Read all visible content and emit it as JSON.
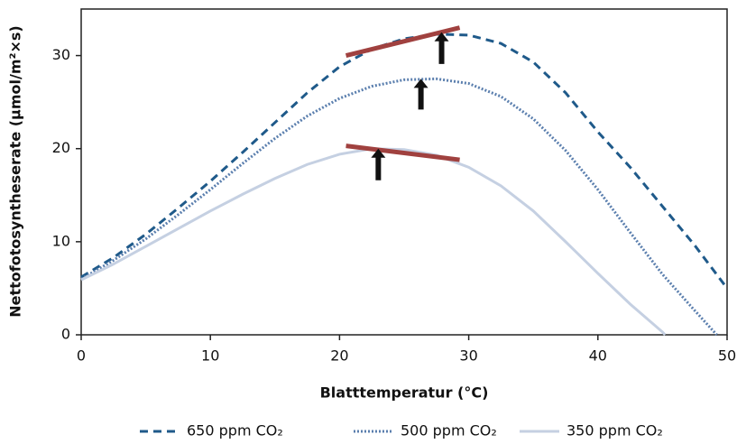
{
  "chart_data": {
    "type": "line",
    "x_label": "Blatttemperatur (°C)",
    "y_label": "Nettofotosyntheserate (µmol/m²×s)",
    "xlim": [
      0,
      50
    ],
    "xticks": [
      0,
      10,
      20,
      30,
      40,
      50
    ],
    "ylim": [
      0,
      35
    ],
    "yticks": [
      0,
      10,
      20,
      30
    ],
    "series": [
      {
        "name": "650 ppm CO₂",
        "color": "#1f5a8a",
        "style": "dashed",
        "x": [
          0,
          2.5,
          5,
          7.5,
          10,
          12.5,
          15,
          17.5,
          20,
          22.5,
          25,
          27.5,
          30,
          32.5,
          35,
          37.5,
          40,
          42.5,
          45,
          47.5,
          50
        ],
        "values": [
          6.2,
          8.3,
          10.8,
          13.6,
          16.5,
          19.6,
          22.8,
          26.0,
          28.8,
          30.7,
          31.8,
          32.3,
          32.2,
          31.3,
          29.3,
          26.0,
          21.8,
          18.0,
          13.8,
          9.6,
          5.0
        ]
      },
      {
        "name": "500 ppm CO₂",
        "color": "#5b7fae",
        "style": "dotted",
        "x": [
          0,
          2.5,
          5,
          7.5,
          10,
          12.5,
          15,
          17.5,
          20,
          22.5,
          25,
          27.5,
          30,
          32.5,
          35,
          37.5,
          40,
          42.5,
          45,
          47.5,
          49.2
        ],
        "values": [
          6.0,
          8.0,
          10.3,
          12.9,
          15.6,
          18.4,
          21.1,
          23.5,
          25.4,
          26.7,
          27.4,
          27.5,
          27.0,
          25.6,
          23.2,
          19.8,
          15.6,
          11.0,
          6.5,
          2.6,
          0
        ]
      },
      {
        "name": "350 ppm CO₂",
        "color": "#c5d0e2",
        "style": "solid",
        "x": [
          0,
          2.5,
          5,
          7.5,
          10,
          12.5,
          15,
          17.5,
          20,
          22.5,
          25,
          27.5,
          30,
          32.5,
          35,
          37.5,
          40,
          42.5,
          45,
          45.2
        ],
        "values": [
          5.9,
          7.6,
          9.5,
          11.4,
          13.3,
          15.1,
          16.8,
          18.3,
          19.4,
          20.0,
          19.9,
          19.3,
          18.0,
          16.0,
          13.3,
          10.0,
          6.6,
          3.3,
          0.3,
          0
        ]
      }
    ],
    "tangent_lines": [
      {
        "color": "#a0413f",
        "x": [
          20.5,
          29.3
        ],
        "y": [
          30.0,
          33.0
        ]
      },
      {
        "color": "#a0413f",
        "x": [
          20.5,
          29.3
        ],
        "y": [
          20.3,
          18.8
        ]
      }
    ],
    "arrows": [
      {
        "color": "#111111",
        "x": 27.9,
        "from": 29.1,
        "to": 32.5
      },
      {
        "color": "#111111",
        "x": 26.3,
        "from": 24.2,
        "to": 27.5
      },
      {
        "color": "#111111",
        "x": 23.0,
        "from": 16.6,
        "to": 20.0
      }
    ]
  }
}
